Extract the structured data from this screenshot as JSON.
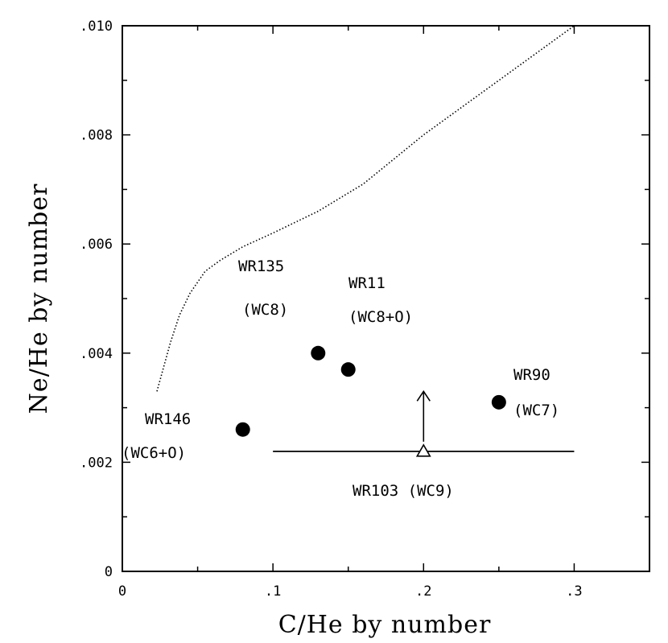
{
  "chart_data": {
    "type": "scatter",
    "xlabel": "C/He by number",
    "ylabel": "Ne/He by number",
    "xlim": [
      0,
      0.35
    ],
    "ylim": [
      0,
      0.01
    ],
    "x_ticks": [
      {
        "value": 0,
        "label": "0"
      },
      {
        "value": 0.1,
        "label": ".1"
      },
      {
        "value": 0.2,
        "label": ".2"
      },
      {
        "value": 0.3,
        "label": ".3"
      }
    ],
    "y_ticks": [
      {
        "value": 0,
        "label": "0"
      },
      {
        "value": 0.002,
        "label": ".002"
      },
      {
        "value": 0.004,
        "label": ".004"
      },
      {
        "value": 0.006,
        "label": ".006"
      },
      {
        "value": 0.008,
        "label": ".008"
      },
      {
        "value": 0.01,
        "label": ".010"
      }
    ],
    "grid": false,
    "points": [
      {
        "x": 0.08,
        "y": 0.0026,
        "name": "WR146",
        "subtype": "(WC6+O)",
        "marker": "filled-circle"
      },
      {
        "x": 0.13,
        "y": 0.004,
        "name": "WR135",
        "subtype": "(WC8)",
        "marker": "filled-circle"
      },
      {
        "x": 0.15,
        "y": 0.0037,
        "name": "WR11",
        "subtype": "(WC8+O)",
        "marker": "filled-circle"
      },
      {
        "x": 0.25,
        "y": 0.0031,
        "name": "WR90",
        "subtype": "(WC7)",
        "marker": "filled-circle"
      }
    ],
    "limit_point": {
      "x": 0.2,
      "y": 0.0022,
      "x_range": [
        0.1,
        0.3
      ],
      "y_arrow_to": 0.0033,
      "marker": "open-triangle",
      "label": "WR103 (WC9)"
    },
    "model_curve": {
      "style": "dotted",
      "points": [
        [
          0.023,
          0.0033
        ],
        [
          0.027,
          0.0037
        ],
        [
          0.032,
          0.0042
        ],
        [
          0.038,
          0.0047
        ],
        [
          0.045,
          0.0051
        ],
        [
          0.055,
          0.0055
        ],
        [
          0.065,
          0.0057
        ],
        [
          0.08,
          0.00595
        ],
        [
          0.1,
          0.0062
        ],
        [
          0.13,
          0.0066
        ],
        [
          0.16,
          0.0071
        ],
        [
          0.2,
          0.008
        ],
        [
          0.25,
          0.009
        ],
        [
          0.3,
          0.01
        ]
      ]
    }
  }
}
